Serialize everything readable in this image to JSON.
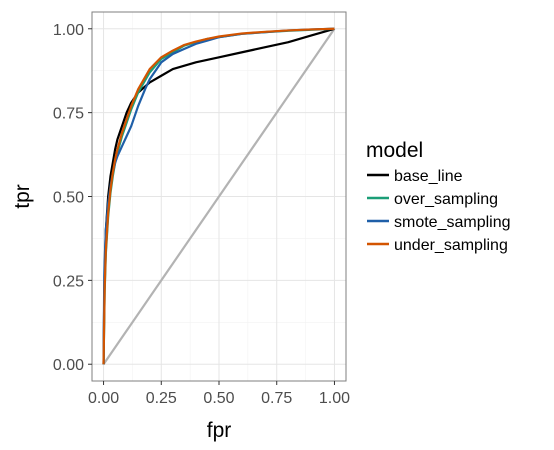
{
  "chart_data": {
    "type": "line",
    "xlabel": "fpr",
    "ylabel": "tpr",
    "xlim": [
      -0.05,
      1.05
    ],
    "ylim": [
      -0.05,
      1.05
    ],
    "x_ticks": [
      0.0,
      0.25,
      0.5,
      0.75,
      1.0
    ],
    "y_ticks": [
      0.0,
      0.25,
      0.5,
      0.75,
      1.0
    ],
    "x_tick_labels": [
      "0.00",
      "0.25",
      "0.50",
      "0.75",
      "1.00"
    ],
    "y_tick_labels": [
      "0.00",
      "0.25",
      "0.50",
      "0.75",
      "1.00"
    ],
    "grid": true,
    "reference_line": {
      "x": [
        0,
        1
      ],
      "y": [
        0,
        1
      ],
      "color": "#b3b3b3"
    },
    "legend": {
      "title": "model",
      "position": "right"
    },
    "series": [
      {
        "name": "base_line",
        "color": "#000000",
        "x": [
          0,
          0.003,
          0.006,
          0.01,
          0.015,
          0.02,
          0.03,
          0.04,
          0.05,
          0.06,
          0.08,
          0.1,
          0.12,
          0.15,
          0.2,
          0.25,
          0.3,
          0.35,
          0.4,
          0.5,
          0.6,
          0.7,
          0.8,
          0.9,
          1.0
        ],
        "y": [
          0,
          0.2,
          0.3,
          0.4,
          0.45,
          0.5,
          0.56,
          0.6,
          0.64,
          0.67,
          0.71,
          0.75,
          0.78,
          0.81,
          0.84,
          0.86,
          0.88,
          0.89,
          0.9,
          0.915,
          0.93,
          0.945,
          0.96,
          0.98,
          1.0
        ]
      },
      {
        "name": "over_sampling",
        "color": "#1b9e77",
        "x": [
          0,
          0.005,
          0.01,
          0.02,
          0.03,
          0.04,
          0.05,
          0.06,
          0.08,
          0.1,
          0.12,
          0.15,
          0.2,
          0.25,
          0.3,
          0.35,
          0.4,
          0.45,
          0.5,
          0.6,
          0.7,
          0.8,
          0.9,
          1.0
        ],
        "y": [
          0,
          0.22,
          0.33,
          0.44,
          0.51,
          0.56,
          0.6,
          0.63,
          0.68,
          0.72,
          0.76,
          0.81,
          0.87,
          0.91,
          0.93,
          0.95,
          0.96,
          0.97,
          0.975,
          0.985,
          0.99,
          0.994,
          0.997,
          1.0
        ]
      },
      {
        "name": "smote_sampling",
        "color": "#1f5fa8",
        "x": [
          0,
          0.003,
          0.006,
          0.01,
          0.015,
          0.02,
          0.03,
          0.04,
          0.05,
          0.06,
          0.08,
          0.1,
          0.12,
          0.15,
          0.18,
          0.2,
          0.25,
          0.3,
          0.35,
          0.4,
          0.45,
          0.5,
          0.6,
          0.7,
          0.8,
          0.9,
          1.0
        ],
        "y": [
          0,
          0.26,
          0.33,
          0.4,
          0.44,
          0.48,
          0.53,
          0.57,
          0.6,
          0.62,
          0.65,
          0.68,
          0.71,
          0.77,
          0.82,
          0.85,
          0.9,
          0.925,
          0.94,
          0.955,
          0.965,
          0.975,
          0.985,
          0.99,
          0.995,
          0.998,
          1.0
        ]
      },
      {
        "name": "under_sampling",
        "color": "#d35400",
        "x": [
          0,
          0.005,
          0.01,
          0.02,
          0.03,
          0.04,
          0.05,
          0.06,
          0.08,
          0.1,
          0.12,
          0.15,
          0.2,
          0.25,
          0.3,
          0.35,
          0.4,
          0.45,
          0.5,
          0.6,
          0.7,
          0.8,
          0.9,
          1.0
        ],
        "y": [
          0,
          0.23,
          0.34,
          0.45,
          0.52,
          0.57,
          0.61,
          0.64,
          0.69,
          0.73,
          0.77,
          0.82,
          0.88,
          0.915,
          0.935,
          0.952,
          0.962,
          0.97,
          0.977,
          0.986,
          0.991,
          0.995,
          0.998,
          1.0
        ]
      }
    ]
  }
}
